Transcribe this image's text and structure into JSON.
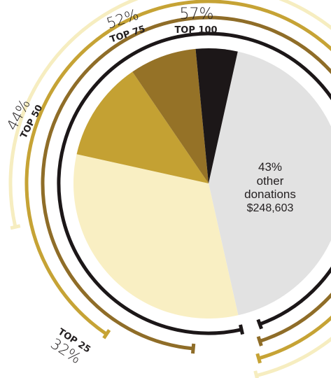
{
  "chart_data": {
    "type": "pie",
    "title": "",
    "slices": [
      {
        "name": "other donations",
        "value": 43,
        "color": "#e2e2e2"
      },
      {
        "name": "TOP 25",
        "value": 32,
        "color": "#f9efc3"
      },
      {
        "name": "TOP 50 (26-50)",
        "value": 12,
        "color": "#c4a133"
      },
      {
        "name": "TOP 75 (51-75)",
        "value": 8,
        "color": "#957227"
      },
      {
        "name": "TOP 100 (76-100)",
        "value": 5,
        "color": "#1c1718"
      }
    ],
    "cumulative_brackets": [
      {
        "tier": "TOP 25",
        "percent": "32%",
        "value": 32,
        "color": "#f6edc0"
      },
      {
        "tier": "TOP 50",
        "percent": "44%",
        "value": 44,
        "color": "#c6a335"
      },
      {
        "tier": "TOP 75",
        "percent": "52%",
        "value": 52,
        "color": "#8f6d28"
      },
      {
        "tier": "TOP 100",
        "percent": "57%",
        "value": 57,
        "color": "#1c1718"
      }
    ],
    "center_label": {
      "percent": "43%",
      "line1": "other",
      "line2": "donations",
      "amount": "$248,603"
    }
  }
}
